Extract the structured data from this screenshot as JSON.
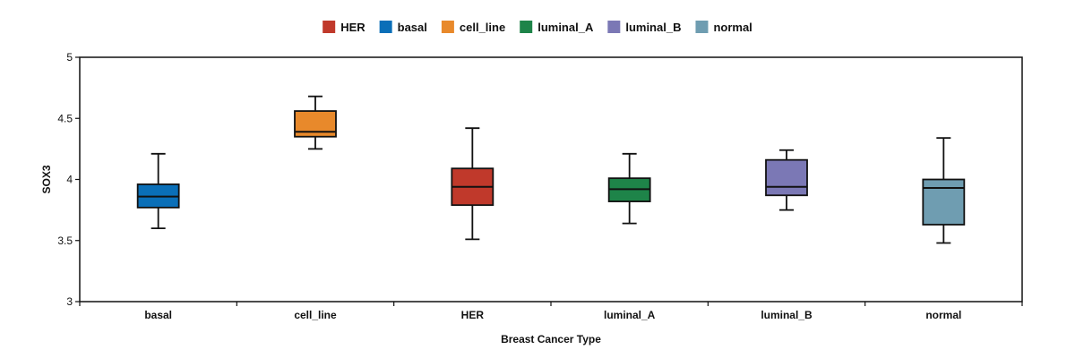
{
  "chart_data": {
    "type": "box",
    "xlabel": "Breast Cancer Type",
    "ylabel": "SOX3",
    "ylim": [
      3,
      5
    ],
    "yticks": [
      3,
      3.5,
      4,
      4.5,
      5
    ],
    "ytick_labels": [
      "3",
      "3.5",
      "4",
      "4.5",
      "5"
    ],
    "grid": false,
    "legend_placement": "top-center",
    "legend": [
      {
        "label": "HER",
        "color": "#c0392b"
      },
      {
        "label": "basal",
        "color": "#0a6fb8"
      },
      {
        "label": "cell_line",
        "color": "#e8892b"
      },
      {
        "label": "luminal_A",
        "color": "#1e8449"
      },
      {
        "label": "luminal_B",
        "color": "#7b78b5"
      },
      {
        "label": "normal",
        "color": "#6f9db1"
      }
    ],
    "categories": [
      "basal",
      "cell_line",
      "HER",
      "luminal_A",
      "luminal_B",
      "normal"
    ],
    "boxes": [
      {
        "category": "basal",
        "color": "#0a6fb8",
        "min": 3.6,
        "q1": 3.77,
        "median": 3.86,
        "q3": 3.96,
        "max": 4.21
      },
      {
        "category": "cell_line",
        "color": "#e8892b",
        "min": 4.25,
        "q1": 4.35,
        "median": 4.39,
        "q3": 4.56,
        "max": 4.68
      },
      {
        "category": "HER",
        "color": "#c0392b",
        "min": 3.51,
        "q1": 3.79,
        "median": 3.94,
        "q3": 4.09,
        "max": 4.42
      },
      {
        "category": "luminal_A",
        "color": "#1e8449",
        "min": 3.64,
        "q1": 3.82,
        "median": 3.92,
        "q3": 4.01,
        "max": 4.21
      },
      {
        "category": "luminal_B",
        "color": "#7b78b5",
        "min": 3.75,
        "q1": 3.87,
        "median": 3.94,
        "q3": 4.16,
        "max": 4.24
      },
      {
        "category": "normal",
        "color": "#6f9db1",
        "min": 3.48,
        "q1": 3.63,
        "median": 3.93,
        "q3": 4.0,
        "max": 4.34
      }
    ]
  }
}
